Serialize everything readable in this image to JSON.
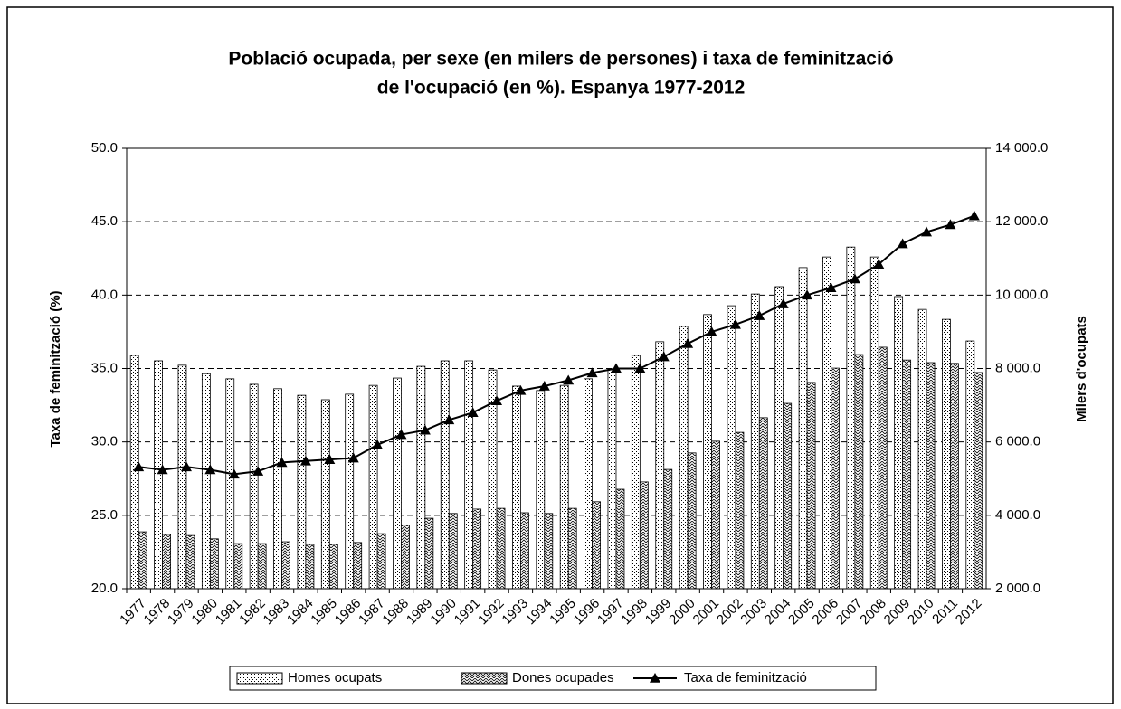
{
  "chart_data": {
    "type": "bar",
    "title": [
      "Població ocupada, per sexe (en milers de persones) i taxa de feminització",
      "de l'ocupació (en %). Espanya 1977-2012"
    ],
    "y_label": "Taxa de feminització (%)",
    "y2_label": "Milers d'ocupats",
    "categories": [
      "1977",
      "1978",
      "1979",
      "1980",
      "1981",
      "1982",
      "1983",
      "1984",
      "1985",
      "1986",
      "1987",
      "1988",
      "1989",
      "1990",
      "1991",
      "1992",
      "1993",
      "1994",
      "1995",
      "1996",
      "1997",
      "1998",
      "1999",
      "2000",
      "2001",
      "2002",
      "2003",
      "2004",
      "2005",
      "2006",
      "2007",
      "2008",
      "2009",
      "2010",
      "2011",
      "2012"
    ],
    "series": [
      {
        "name": "Homes ocupats",
        "type": "bar",
        "axis": "y2",
        "color": "#000000",
        "pattern": "dots",
        "values": [
          8360,
          8210,
          8090,
          7860,
          7720,
          7570,
          7450,
          7270,
          7150,
          7300,
          7540,
          7740,
          8060,
          8210,
          8210,
          7960,
          7520,
          7400,
          7540,
          7720,
          7990,
          8360,
          8730,
          9150,
          9470,
          9710,
          10030,
          10230,
          10750,
          11040,
          11310,
          11040,
          9960,
          9610,
          9340,
          8750
        ]
      },
      {
        "name": "Dones ocupades",
        "type": "bar",
        "axis": "y2",
        "color": "#000000",
        "pattern": "hatch",
        "values": [
          3550,
          3480,
          3450,
          3360,
          3230,
          3230,
          3280,
          3210,
          3210,
          3260,
          3500,
          3730,
          3920,
          4050,
          4170,
          4190,
          4070,
          4050,
          4190,
          4370,
          4710,
          4910,
          5250,
          5700,
          6020,
          6260,
          6660,
          7050,
          7620,
          8010,
          8380,
          8580,
          8230,
          8160,
          8140,
          7890
        ]
      },
      {
        "name": "Taxa de feminització",
        "type": "line",
        "axis": "y",
        "color": "#000000",
        "marker": "triangle",
        "values": [
          28.3,
          28.1,
          28.3,
          28.1,
          27.8,
          28.0,
          28.6,
          28.7,
          28.8,
          28.9,
          29.8,
          30.5,
          30.8,
          31.5,
          32.0,
          32.8,
          33.5,
          33.8,
          34.2,
          34.7,
          35.0,
          35.0,
          35.8,
          36.7,
          37.5,
          38.0,
          38.6,
          39.4,
          40.0,
          40.5,
          41.1,
          42.1,
          43.5,
          44.3,
          44.8,
          45.4
        ]
      }
    ],
    "ylim": [
      20,
      50
    ],
    "yticks": [
      {
        "value": 20,
        "label": "20.0"
      },
      {
        "value": 25,
        "label": "25.0"
      },
      {
        "value": 30,
        "label": "30.0"
      },
      {
        "value": 35,
        "label": "35.0"
      },
      {
        "value": 40,
        "label": "40.0"
      },
      {
        "value": 45,
        "label": "45.0"
      },
      {
        "value": 50,
        "label": "50.0"
      }
    ],
    "y2lim": [
      2000,
      14000
    ],
    "y2ticks": [
      {
        "value": 2000,
        "label": "2 000.0"
      },
      {
        "value": 4000,
        "label": "4 000.0"
      },
      {
        "value": 6000,
        "label": "6 000.0"
      },
      {
        "value": 8000,
        "label": "8 000.0"
      },
      {
        "value": 10000,
        "label": "10 000.0"
      },
      {
        "value": 12000,
        "label": "12 000.0"
      },
      {
        "value": 14000,
        "label": "14 000.0"
      }
    ],
    "grid": true,
    "grid_style": "dashed",
    "legend": "bottom"
  }
}
